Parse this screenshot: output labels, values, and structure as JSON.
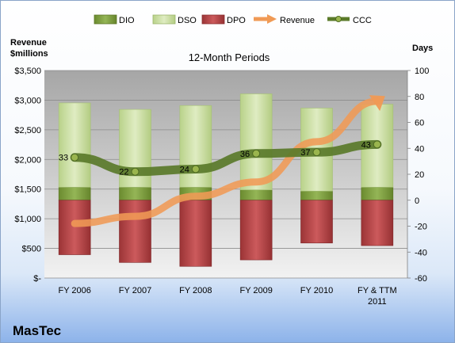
{
  "chart_data": {
    "type": "bar",
    "title": "12-Month Periods",
    "company": "MasTec",
    "left_axis_title_line1": "Revenue",
    "left_axis_title_line2": "$millions",
    "right_axis_title": "Days",
    "categories": [
      "FY 2006",
      "FY 2007",
      "FY 2008",
      "FY 2009",
      "FY 2010",
      "FY & TTM 2011"
    ],
    "left_axis": {
      "min": 0,
      "max": 3500,
      "step": 500,
      "tick_labels": [
        "$-",
        "$500",
        "$1,000",
        "$1,500",
        "$2,000",
        "$2,500",
        "$3,000",
        "$3,500"
      ]
    },
    "right_axis": {
      "min": -60,
      "max": 100,
      "step": 20,
      "tick_labels": [
        "-60",
        "-40",
        "-20",
        "0",
        "20",
        "40",
        "60",
        "80",
        "100"
      ]
    },
    "series": [
      {
        "name": "DIO",
        "type": "stacked-bar",
        "axis": "right",
        "values": [
          10,
          10,
          10,
          8,
          7,
          10
        ],
        "color": "#7a9a3c"
      },
      {
        "name": "DSO",
        "type": "stacked-bar",
        "axis": "right",
        "values": [
          65,
          60,
          63,
          74,
          64,
          64
        ],
        "color": "#c9dd9c"
      },
      {
        "name": "DPO",
        "type": "negative-bar",
        "axis": "right",
        "values": [
          -42,
          -48,
          -51,
          -46,
          -33,
          -35
        ],
        "color": "#b8484a"
      },
      {
        "name": "Revenue",
        "type": "arrow-line",
        "axis": "left",
        "values": [
          920,
          1040,
          1380,
          1620,
          2300,
          2980
        ],
        "color": "#f09a55"
      },
      {
        "name": "CCC",
        "type": "line",
        "axis": "right",
        "values": [
          33,
          22,
          24,
          36,
          37,
          43
        ],
        "labels": [
          "33",
          "22",
          "24",
          "36",
          "37",
          "43"
        ],
        "color": "#5a7a2a"
      }
    ],
    "grid": true,
    "legend_position": "top"
  }
}
